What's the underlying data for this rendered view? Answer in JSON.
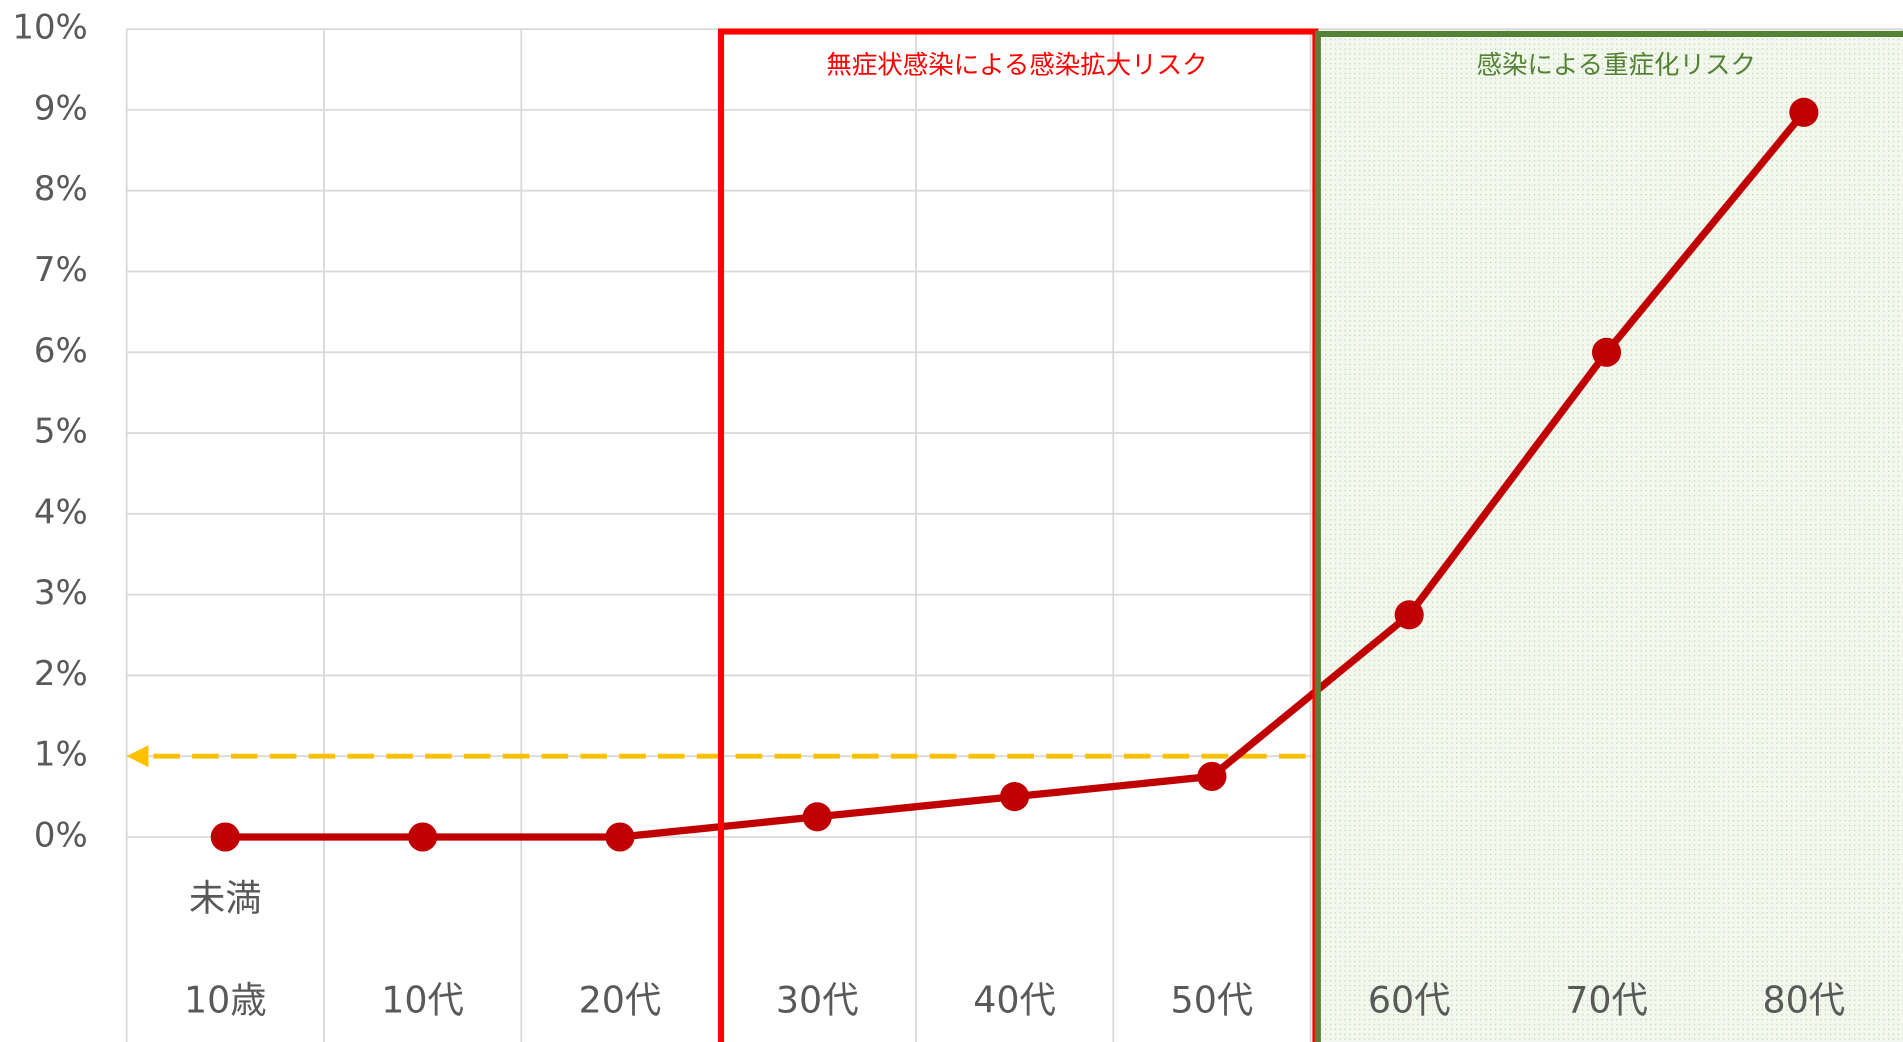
{
  "chart_data": {
    "type": "line",
    "categories": [
      "10歳",
      "10代",
      "20代",
      "30代",
      "40代",
      "50代",
      "60代",
      "70代",
      "80代"
    ],
    "category_sublabel": "未満",
    "series": [
      {
        "color": "#c00000",
        "values": [
          0,
          0,
          0,
          0.25,
          0.5,
          0.75,
          2.75,
          6,
          8.97
        ]
      }
    ],
    "ylim": [
      -2.5,
      10
    ],
    "yticks": [
      {
        "value": 0,
        "label": "0%"
      },
      {
        "value": 1,
        "label": "1%"
      },
      {
        "value": 2,
        "label": "2%"
      },
      {
        "value": 3,
        "label": "3%"
      },
      {
        "value": 4,
        "label": "4%"
      },
      {
        "value": 5,
        "label": "5%"
      },
      {
        "value": 6,
        "label": "6%"
      },
      {
        "value": 7,
        "label": "7%"
      },
      {
        "value": 8,
        "label": "8%"
      },
      {
        "value": 9,
        "label": "9%"
      },
      {
        "value": 10,
        "label": "10%"
      }
    ],
    "grid": true,
    "reference_line": {
      "value": 1,
      "color": "#ffc000"
    },
    "regions": [
      {
        "label": "無症状感染による感染拡大リスク",
        "color": "#ff0000"
      },
      {
        "label": "感染による重症化リスク",
        "color": "#548235"
      }
    ]
  }
}
